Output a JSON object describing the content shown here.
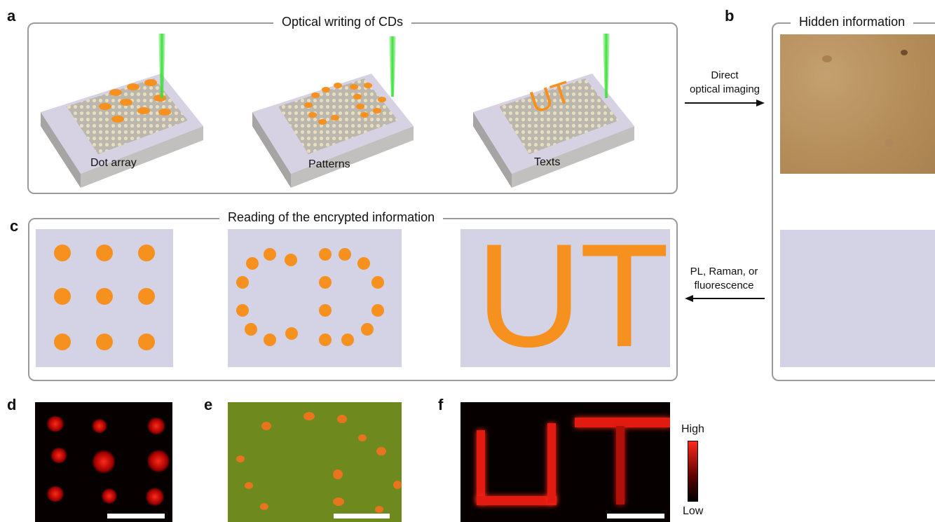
{
  "panel_letters": {
    "a": "a",
    "b": "b",
    "c": "c",
    "d": "d",
    "e": "e",
    "f": "f"
  },
  "panel_a": {
    "title": "Optical writing of CDs",
    "labels": [
      "Dot array",
      "Patterns",
      "Texts"
    ],
    "written_text": "UT"
  },
  "panel_b": {
    "title": "Hidden information"
  },
  "arrows": {
    "top_label_line1": "Direct",
    "top_label_line2": "optical imaging",
    "bottom_label_line1": "PL, Raman, or",
    "bottom_label_line2": "fluorescence"
  },
  "panel_c": {
    "title": "Reading of the encrypted information",
    "text_pattern": "UT"
  },
  "colorbar": {
    "high": "High",
    "low": "Low"
  },
  "colors": {
    "dot_orange": "#f6901f",
    "laser_green": "#3ee03a",
    "plate_lavender": "#d4d3e6",
    "frame_gray": "#9a9a9a",
    "hidden_tan": "#b9915e",
    "emission_red": "#ff2a1a",
    "map_green": "#6e8a1f"
  }
}
